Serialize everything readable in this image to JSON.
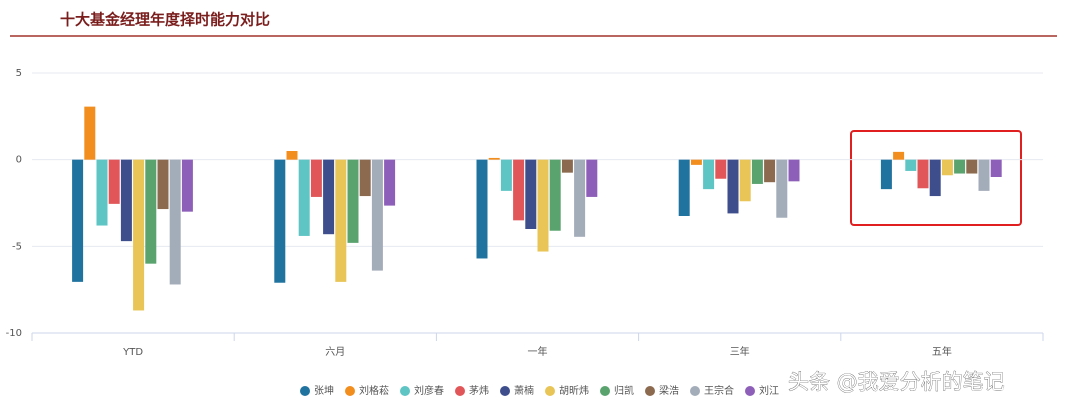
{
  "chart_data": {
    "type": "bar",
    "title": "十大基金经理年度择时能力对比",
    "watermark": "头条 @我爱分析的笔记",
    "categories": [
      "YTD",
      "六月",
      "一年",
      "三年",
      "五年"
    ],
    "ylim": [
      -10,
      5
    ],
    "yticks": [
      5,
      0,
      -5,
      -10
    ],
    "grid": true,
    "series": [
      {
        "name": "张坤",
        "color": "#21739f",
        "values": [
          -7.05,
          -7.1,
          -5.7,
          -3.25,
          -1.7
        ]
      },
      {
        "name": "刘格菘",
        "color": "#f28e1e",
        "values": [
          3.06,
          0.5,
          0.1,
          -0.3,
          0.45
        ]
      },
      {
        "name": "刘彦春",
        "color": "#5ec4c4",
        "values": [
          -3.8,
          -4.4,
          -1.8,
          -1.7,
          -0.65
        ]
      },
      {
        "name": "茅炜",
        "color": "#e15759",
        "values": [
          -2.55,
          -2.15,
          -3.5,
          -1.1,
          -1.65
        ]
      },
      {
        "name": "萧楠",
        "color": "#3e4d8c",
        "values": [
          -4.7,
          -4.3,
          -4.0,
          -3.1,
          -2.1
        ]
      },
      {
        "name": "胡昕炜",
        "color": "#e8c556",
        "values": [
          -8.7,
          -7.05,
          -5.3,
          -2.4,
          -0.9
        ]
      },
      {
        "name": "归凯",
        "color": "#5aa36e",
        "values": [
          -6.0,
          -4.8,
          -4.1,
          -1.4,
          -0.8
        ]
      },
      {
        "name": "梁浩",
        "color": "#8c6a4f",
        "values": [
          -2.85,
          -2.1,
          -0.75,
          -1.3,
          -0.8
        ]
      },
      {
        "name": "王宗合",
        "color": "#a3acb9",
        "values": [
          -7.2,
          -6.4,
          -4.45,
          -3.35,
          -1.8
        ]
      },
      {
        "name": "刘江",
        "color": "#8e5fb8",
        "values": [
          -3.0,
          -2.65,
          -2.15,
          -1.25,
          -1.0
        ]
      }
    ]
  }
}
